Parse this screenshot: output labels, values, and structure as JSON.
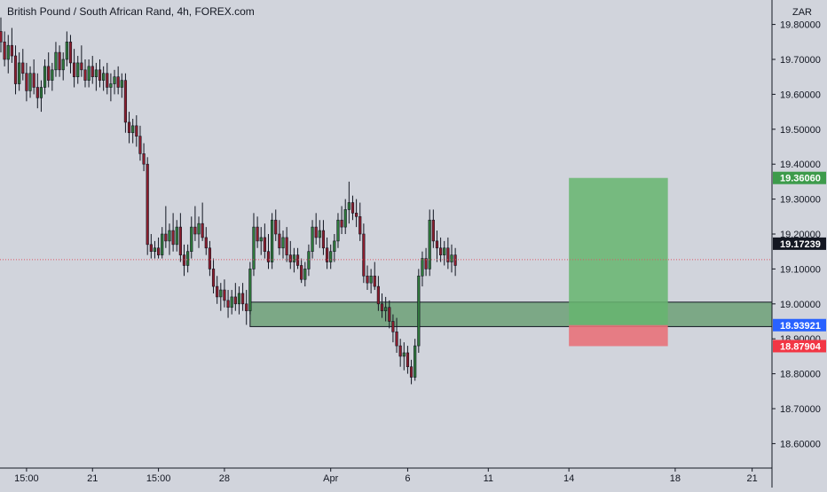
{
  "header": {
    "title": "British Pound / South African Rand, 4h, FOREX.com"
  },
  "colors": {
    "background": "#d1d4dc",
    "axis_line": "#131722",
    "candle_up": "#2f7a3b",
    "candle_down": "#8e1e2e",
    "wick": "#131722",
    "zone_fill": "#5f9a6a",
    "zone_border": "#131722",
    "target_fill": "#66b56e",
    "stop_fill": "#e8727a",
    "current_line": "#e05363",
    "badge_target": "#3d9b4b",
    "badge_current": "#131722",
    "badge_entry": "#2962ff",
    "badge_stop": "#f23645"
  },
  "chart_data": {
    "type": "candlestick",
    "title": "British Pound / South African Rand, 4h, FOREX.com",
    "currency": "ZAR",
    "ylim": [
      18.53,
      19.87
    ],
    "y_ticks": [
      "18.60000",
      "18.70000",
      "18.80000",
      "18.90000",
      "19.00000",
      "19.10000",
      "19.20000",
      "19.30000",
      "19.40000",
      "19.50000",
      "19.60000",
      "19.70000",
      "19.80000"
    ],
    "x_ticks": [
      {
        "label": "15:00",
        "index": 7
      },
      {
        "label": "21",
        "index": 25
      },
      {
        "label": "15:00",
        "index": 43
      },
      {
        "label": "28",
        "index": 61
      },
      {
        "label": "Apr",
        "index": 90
      },
      {
        "label": "6",
        "index": 111
      },
      {
        "label": "11",
        "index": 133
      },
      {
        "label": "14",
        "index": 155
      },
      {
        "label": "18",
        "index": 184
      },
      {
        "label": "21",
        "index": 205
      }
    ],
    "candles": [
      [
        19.78,
        19.82,
        19.72,
        19.75
      ],
      [
        19.75,
        19.78,
        19.68,
        19.7
      ],
      [
        19.7,
        19.77,
        19.66,
        19.74
      ],
      [
        19.74,
        19.79,
        19.69,
        19.71
      ],
      [
        19.71,
        19.74,
        19.6,
        19.63
      ],
      [
        19.63,
        19.72,
        19.61,
        19.69
      ],
      [
        19.69,
        19.73,
        19.64,
        19.66
      ],
      [
        19.66,
        19.69,
        19.58,
        19.61
      ],
      [
        19.61,
        19.68,
        19.59,
        19.66
      ],
      [
        19.66,
        19.7,
        19.6,
        19.62
      ],
      [
        19.62,
        19.66,
        19.56,
        19.59
      ],
      [
        19.59,
        19.64,
        19.55,
        19.62
      ],
      [
        19.62,
        19.7,
        19.6,
        19.68
      ],
      [
        19.68,
        19.72,
        19.62,
        19.64
      ],
      [
        19.64,
        19.69,
        19.61,
        19.67
      ],
      [
        19.67,
        19.75,
        19.65,
        19.72
      ],
      [
        19.72,
        19.74,
        19.65,
        19.67
      ],
      [
        19.67,
        19.72,
        19.64,
        19.7
      ],
      [
        19.7,
        19.78,
        19.68,
        19.75
      ],
      [
        19.75,
        19.77,
        19.66,
        19.69
      ],
      [
        19.69,
        19.73,
        19.62,
        19.65
      ],
      [
        19.65,
        19.71,
        19.63,
        19.69
      ],
      [
        19.69,
        19.74,
        19.65,
        19.67
      ],
      [
        19.67,
        19.7,
        19.62,
        19.64
      ],
      [
        19.64,
        19.7,
        19.62,
        19.68
      ],
      [
        19.68,
        19.71,
        19.63,
        19.65
      ],
      [
        19.65,
        19.69,
        19.61,
        19.67
      ],
      [
        19.67,
        19.7,
        19.62,
        19.64
      ],
      [
        19.64,
        19.68,
        19.61,
        19.66
      ],
      [
        19.66,
        19.69,
        19.6,
        19.62
      ],
      [
        19.62,
        19.66,
        19.58,
        19.63
      ],
      [
        19.63,
        19.67,
        19.6,
        19.65
      ],
      [
        19.65,
        19.68,
        19.6,
        19.62
      ],
      [
        19.62,
        19.66,
        19.59,
        19.64
      ],
      [
        19.64,
        19.66,
        19.49,
        19.52
      ],
      [
        19.52,
        19.55,
        19.46,
        19.49
      ],
      [
        19.49,
        19.53,
        19.46,
        19.51
      ],
      [
        19.51,
        19.54,
        19.45,
        19.48
      ],
      [
        19.48,
        19.51,
        19.41,
        19.43
      ],
      [
        19.43,
        19.46,
        19.38,
        19.4
      ],
      [
        19.4,
        19.42,
        19.14,
        19.17
      ],
      [
        19.17,
        19.2,
        19.13,
        19.15
      ],
      [
        19.15,
        19.18,
        19.13,
        19.16
      ],
      [
        19.16,
        19.19,
        19.13,
        19.14
      ],
      [
        19.14,
        19.22,
        19.13,
        19.2
      ],
      [
        19.2,
        19.28,
        19.16,
        19.18
      ],
      [
        19.18,
        19.23,
        19.14,
        19.21
      ],
      [
        19.21,
        19.26,
        19.15,
        19.17
      ],
      [
        19.17,
        19.24,
        19.15,
        19.22
      ],
      [
        19.22,
        19.26,
        19.12,
        19.14
      ],
      [
        19.14,
        19.17,
        19.08,
        19.11
      ],
      [
        19.11,
        19.17,
        19.09,
        19.15
      ],
      [
        19.15,
        19.25,
        19.13,
        19.22
      ],
      [
        19.22,
        19.28,
        19.18,
        19.2
      ],
      [
        19.2,
        19.25,
        19.16,
        19.23
      ],
      [
        19.23,
        19.29,
        19.18,
        19.19
      ],
      [
        19.19,
        19.22,
        19.14,
        19.16
      ],
      [
        19.16,
        19.18,
        19.08,
        19.1
      ],
      [
        19.1,
        19.13,
        19.03,
        19.05
      ],
      [
        19.05,
        19.08,
        19.0,
        19.02
      ],
      [
        19.02,
        19.06,
        18.98,
        19.04
      ],
      [
        19.04,
        19.07,
        18.99,
        19.01
      ],
      [
        19.01,
        19.04,
        18.96,
        18.99
      ],
      [
        18.99,
        19.04,
        18.97,
        19.02
      ],
      [
        19.02,
        19.06,
        18.98,
        19.0
      ],
      [
        19.0,
        19.05,
        18.97,
        19.03
      ],
      [
        19.03,
        19.06,
        18.98,
        19.0
      ],
      [
        19.0,
        19.04,
        18.94,
        18.98
      ],
      [
        18.98,
        19.12,
        18.97,
        19.1
      ],
      [
        19.1,
        19.26,
        19.08,
        19.22
      ],
      [
        19.22,
        19.25,
        19.16,
        19.18
      ],
      [
        19.18,
        19.22,
        19.14,
        19.19
      ],
      [
        19.19,
        19.23,
        19.13,
        19.15
      ],
      [
        19.15,
        19.2,
        19.1,
        19.12
      ],
      [
        19.12,
        19.26,
        19.1,
        19.24
      ],
      [
        19.24,
        19.27,
        19.18,
        19.2
      ],
      [
        19.2,
        19.24,
        19.14,
        19.16
      ],
      [
        19.16,
        19.21,
        19.13,
        19.19
      ],
      [
        19.19,
        19.22,
        19.12,
        19.14
      ],
      [
        19.14,
        19.18,
        19.1,
        19.12
      ],
      [
        19.12,
        19.16,
        19.09,
        19.14
      ],
      [
        19.14,
        19.16,
        19.1,
        19.11
      ],
      [
        19.11,
        19.13,
        19.06,
        19.07
      ],
      [
        19.07,
        19.12,
        19.05,
        19.1
      ],
      [
        19.1,
        19.17,
        19.08,
        19.15
      ],
      [
        19.15,
        19.24,
        19.13,
        19.22
      ],
      [
        19.22,
        19.26,
        19.17,
        19.19
      ],
      [
        19.19,
        19.24,
        19.16,
        19.21
      ],
      [
        19.21,
        19.24,
        19.14,
        19.16
      ],
      [
        19.16,
        19.19,
        19.1,
        19.12
      ],
      [
        19.12,
        19.17,
        19.1,
        19.15
      ],
      [
        19.15,
        19.2,
        19.12,
        19.18
      ],
      [
        19.18,
        19.26,
        19.16,
        19.24
      ],
      [
        19.24,
        19.28,
        19.2,
        19.22
      ],
      [
        19.22,
        19.3,
        19.2,
        19.27
      ],
      [
        19.27,
        19.35,
        19.23,
        19.29
      ],
      [
        19.29,
        19.31,
        19.24,
        19.26
      ],
      [
        19.26,
        19.3,
        19.22,
        19.25
      ],
      [
        19.25,
        19.29,
        19.18,
        19.2
      ],
      [
        19.2,
        19.23,
        19.06,
        19.08
      ],
      [
        19.08,
        19.11,
        19.04,
        19.06
      ],
      [
        19.06,
        19.1,
        19.03,
        19.08
      ],
      [
        19.08,
        19.12,
        19.04,
        19.05
      ],
      [
        19.05,
        19.08,
        18.98,
        19.0
      ],
      [
        19.0,
        19.03,
        18.96,
        18.98
      ],
      [
        18.98,
        19.02,
        18.95,
        18.99
      ],
      [
        18.99,
        19.01,
        18.93,
        18.95
      ],
      [
        18.95,
        18.97,
        18.89,
        18.92
      ],
      [
        18.92,
        18.96,
        18.86,
        18.88
      ],
      [
        18.88,
        18.9,
        18.82,
        18.85
      ],
      [
        18.85,
        18.89,
        18.81,
        18.86
      ],
      [
        18.86,
        18.88,
        18.8,
        18.82
      ],
      [
        18.82,
        18.84,
        18.77,
        18.79
      ],
      [
        18.79,
        18.9,
        18.78,
        18.88
      ],
      [
        18.88,
        19.1,
        18.86,
        19.08
      ],
      [
        19.08,
        19.15,
        19.05,
        19.13
      ],
      [
        19.13,
        19.16,
        19.08,
        19.1
      ],
      [
        19.1,
        19.27,
        19.08,
        19.24
      ],
      [
        19.24,
        19.27,
        19.16,
        19.18
      ],
      [
        19.18,
        19.21,
        19.12,
        19.16
      ],
      [
        19.16,
        19.19,
        19.12,
        19.14
      ],
      [
        19.14,
        19.18,
        19.11,
        19.16
      ],
      [
        19.16,
        19.19,
        19.1,
        19.12
      ],
      [
        19.12,
        19.17,
        19.09,
        19.14
      ],
      [
        19.14,
        19.16,
        19.08,
        19.11
      ]
    ],
    "demand_zone": {
      "from": 18.935,
      "to": 19.005,
      "start_index": 68
    },
    "position": {
      "start_index": 155,
      "end_index": 182,
      "target": 19.3606,
      "entry": 18.93921,
      "stop": 18.87904
    },
    "current_price": 19.17239,
    "badges": [
      {
        "label": "19.36060",
        "value": 19.3606,
        "color": "badge_target"
      },
      {
        "label": "19.17239",
        "value": 19.17239,
        "color": "badge_current"
      },
      {
        "label": "18.93921",
        "value": 18.93921,
        "color": "badge_entry"
      },
      {
        "label": "18.87904",
        "value": 18.87904,
        "color": "badge_stop"
      }
    ]
  }
}
